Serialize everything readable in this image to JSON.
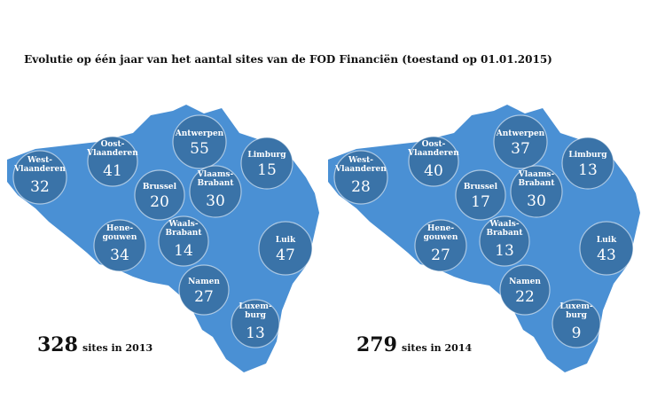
{
  "title": "Evolutie op één jaar van het aantal sites van de FOD Financiën (toestand op 01.01.2015)",
  "colors": {
    "map": "#4a90d4",
    "circle": "#3a73a8",
    "circle_edge": "#ffffff"
  },
  "maps": [
    {
      "total": "328",
      "total_label": "sites in 2013",
      "regions": [
        {
          "name": [
            "West-",
            "Vlaanderen"
          ],
          "count": "32"
        },
        {
          "name": [
            "Oost-",
            "Vlaanderen"
          ],
          "count": "41"
        },
        {
          "name": [
            "Antwerpen"
          ],
          "count": "55"
        },
        {
          "name": [
            "Limburg"
          ],
          "count": "15"
        },
        {
          "name": [
            "Brussel"
          ],
          "count": "20"
        },
        {
          "name": [
            "Vlaams-",
            "Brabant"
          ],
          "count": "30"
        },
        {
          "name": [
            "Hene-",
            "gouwen"
          ],
          "count": "34"
        },
        {
          "name": [
            "Waals-",
            "Brabant"
          ],
          "count": "14"
        },
        {
          "name": [
            "Luik"
          ],
          "count": "47"
        },
        {
          "name": [
            "Namen"
          ],
          "count": "27"
        },
        {
          "name": [
            "Luxem-",
            "burg"
          ],
          "count": "13"
        }
      ]
    },
    {
      "total": "279",
      "total_label": "sites in 2014",
      "regions": [
        {
          "name": [
            "West-",
            "Vlaanderen"
          ],
          "count": "28"
        },
        {
          "name": [
            "Oost-",
            "Vlaanderen"
          ],
          "count": "40"
        },
        {
          "name": [
            "Antwerpen"
          ],
          "count": "37"
        },
        {
          "name": [
            "Limburg"
          ],
          "count": "13"
        },
        {
          "name": [
            "Brussel"
          ],
          "count": "17"
        },
        {
          "name": [
            "Vlaams-",
            "Brabant"
          ],
          "count": "30"
        },
        {
          "name": [
            "Hene-",
            "gouwen"
          ],
          "count": "27"
        },
        {
          "name": [
            "Waals-",
            "Brabant"
          ],
          "count": "13"
        },
        {
          "name": [
            "Luik"
          ],
          "count": "43"
        },
        {
          "name": [
            "Namen"
          ],
          "count": "22"
        },
        {
          "name": [
            "Luxem-",
            "burg"
          ],
          "count": "9"
        }
      ]
    }
  ]
}
